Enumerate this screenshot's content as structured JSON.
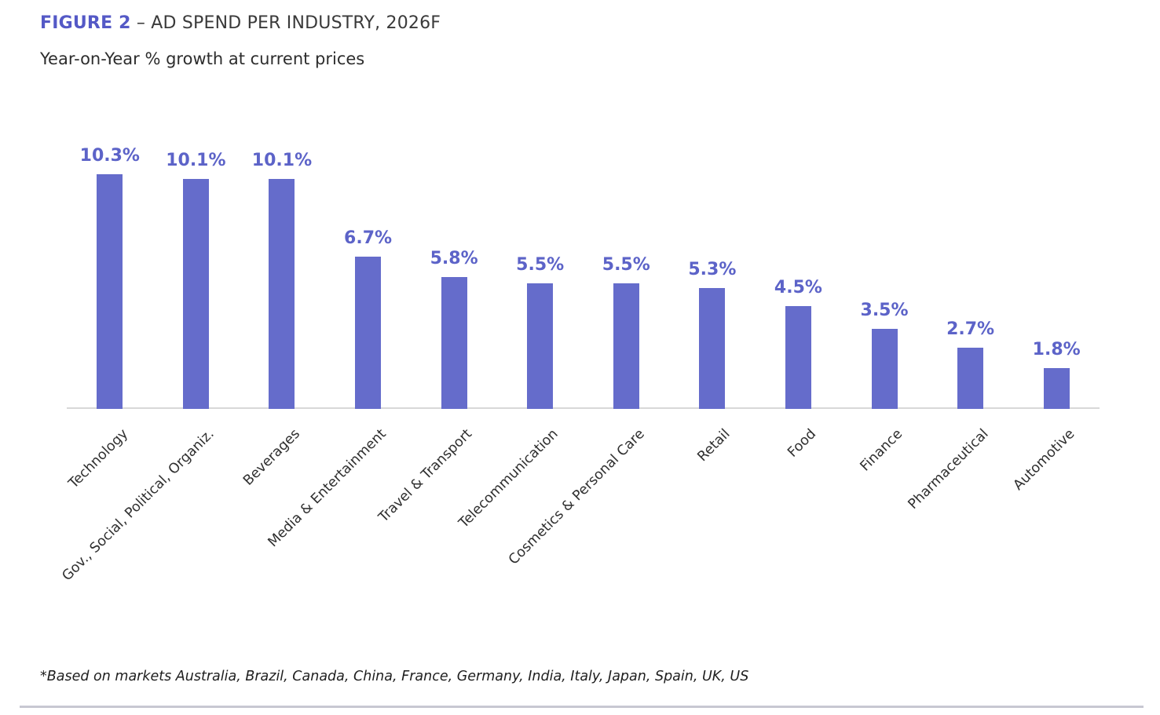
{
  "header": {
    "figure_label": "FIGURE 2",
    "title_rest": " – AD SPEND PER INDUSTRY, 2026F",
    "subtitle": "Year-on-Year % growth at current prices"
  },
  "footnote": "*Based on markets Australia, Brazil, Canada, China, France, Germany, India, Italy, Japan, Spain, UK, US",
  "colors": {
    "bar": "#656CCB",
    "value_label": "#5C63C8",
    "figure_label_accent": "#5459C6",
    "axis_line": "#d8d8d8",
    "divider": "#c8c8d2"
  },
  "chart_data": {
    "type": "bar",
    "title": "FIGURE 2 – AD SPEND PER INDUSTRY, 2026F",
    "subtitle": "Year-on-Year % growth at current prices",
    "categories": [
      "Technology",
      "Gov., Social, Political, Organiz.",
      "Beverages",
      "Media & Entertainment",
      "Travel & Transport",
      "Telecommunication",
      "Cosmetics & Personal Care",
      "Retail",
      "Food",
      "Finance",
      "Pharmaceutical",
      "Automotive"
    ],
    "values": [
      10.3,
      10.1,
      10.1,
      6.7,
      5.8,
      5.5,
      5.5,
      5.3,
      4.5,
      3.5,
      2.7,
      1.8
    ],
    "value_labels": [
      "10.3%",
      "10.1%",
      "10.1%",
      "6.7%",
      "5.8%",
      "5.5%",
      "5.5%",
      "5.3%",
      "4.5%",
      "3.5%",
      "2.7%",
      "1.8%"
    ],
    "xlabel": "",
    "ylabel": "",
    "ylim": [
      0,
      11
    ],
    "grid": false,
    "legend": "none",
    "bar_color": "#656CCB",
    "x_label_rotation_deg": 45
  }
}
